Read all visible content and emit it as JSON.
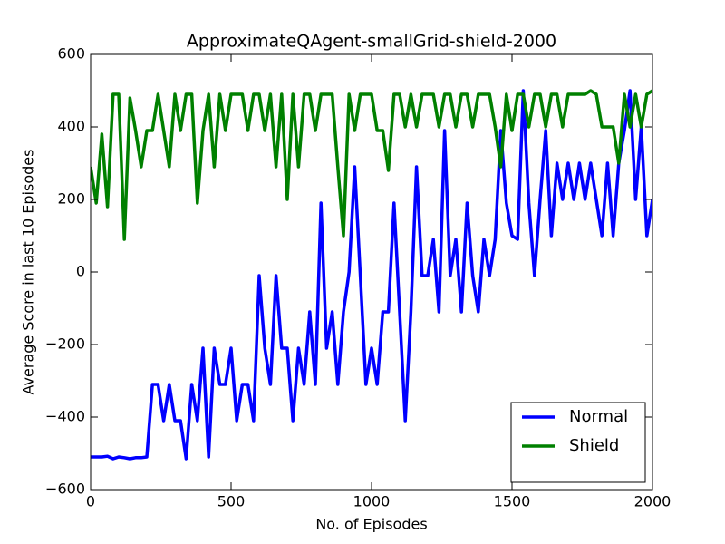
{
  "chart_data": {
    "type": "line",
    "title": "ApproximateQAgent-smallGrid-shield-2000",
    "x_label": "No. of Episodes",
    "y_label": "Average Score in last 10 Episodes",
    "x": [
      0,
      20,
      40,
      60,
      80,
      100,
      120,
      140,
      160,
      180,
      200,
      220,
      240,
      260,
      280,
      300,
      320,
      340,
      360,
      380,
      400,
      420,
      440,
      460,
      480,
      500,
      520,
      540,
      560,
      580,
      600,
      620,
      640,
      660,
      680,
      700,
      720,
      740,
      760,
      780,
      800,
      820,
      840,
      860,
      880,
      900,
      920,
      940,
      960,
      980,
      1000,
      1020,
      1040,
      1060,
      1080,
      1100,
      1120,
      1140,
      1160,
      1180,
      1200,
      1220,
      1240,
      1260,
      1280,
      1300,
      1320,
      1340,
      1360,
      1380,
      1400,
      1420,
      1440,
      1460,
      1480,
      1500,
      1520,
      1540,
      1560,
      1580,
      1600,
      1620,
      1640,
      1660,
      1680,
      1700,
      1720,
      1740,
      1760,
      1780,
      1800,
      1820,
      1840,
      1860,
      1880,
      1900,
      1920,
      1940,
      1960,
      1980,
      2000
    ],
    "series": [
      {
        "name": "Normal",
        "color": "#0000ff",
        "values": [
          -510,
          -510,
          -510,
          -508,
          -515,
          -510,
          -512,
          -515,
          -512,
          -512,
          -510,
          -310,
          -310,
          -410,
          -310,
          -410,
          -410,
          -515,
          -310,
          -410,
          -210,
          -510,
          -210,
          -310,
          -310,
          -210,
          -410,
          -310,
          -310,
          -410,
          -10,
          -210,
          -310,
          -10,
          -210,
          -210,
          -410,
          -210,
          -310,
          -110,
          -310,
          190,
          -210,
          -110,
          -310,
          -110,
          0,
          290,
          -10,
          -310,
          -210,
          -310,
          -110,
          -110,
          190,
          -110,
          -410,
          -110,
          290,
          -10,
          -10,
          90,
          -110,
          390,
          -10,
          90,
          -110,
          190,
          -10,
          -110,
          90,
          -10,
          90,
          390,
          190,
          100,
          90,
          500,
          190,
          -10,
          200,
          390,
          100,
          300,
          200,
          300,
          200,
          300,
          200,
          300,
          200,
          100,
          300,
          100,
          300,
          390,
          500,
          200,
          400,
          100,
          200
        ]
      },
      {
        "name": "Shield",
        "color": "#008000",
        "values": [
          290,
          190,
          380,
          180,
          490,
          490,
          90,
          480,
          390,
          290,
          390,
          390,
          490,
          390,
          290,
          490,
          390,
          490,
          490,
          190,
          390,
          490,
          290,
          490,
          390,
          490,
          490,
          490,
          390,
          490,
          490,
          390,
          490,
          290,
          490,
          200,
          490,
          290,
          490,
          490,
          390,
          490,
          490,
          490,
          290,
          100,
          490,
          390,
          490,
          490,
          490,
          390,
          390,
          280,
          490,
          490,
          400,
          490,
          400,
          490,
          490,
          490,
          400,
          490,
          490,
          400,
          490,
          490,
          400,
          490,
          490,
          490,
          400,
          290,
          490,
          390,
          490,
          490,
          400,
          490,
          490,
          400,
          490,
          490,
          400,
          490,
          490,
          490,
          490,
          500,
          490,
          400,
          400,
          400,
          300,
          490,
          400,
          490,
          400,
          490,
          500
        ]
      }
    ],
    "xlim": [
      0,
      2000
    ],
    "ylim": [
      -600,
      600
    ],
    "xticks": [
      0,
      500,
      1000,
      1500,
      2000
    ],
    "yticks": [
      {
        "value": -600,
        "label": "−600"
      },
      {
        "value": -400,
        "label": "−400"
      },
      {
        "value": -200,
        "label": "−200"
      },
      0,
      200,
      400,
      600
    ],
    "legend": "lower right"
  }
}
